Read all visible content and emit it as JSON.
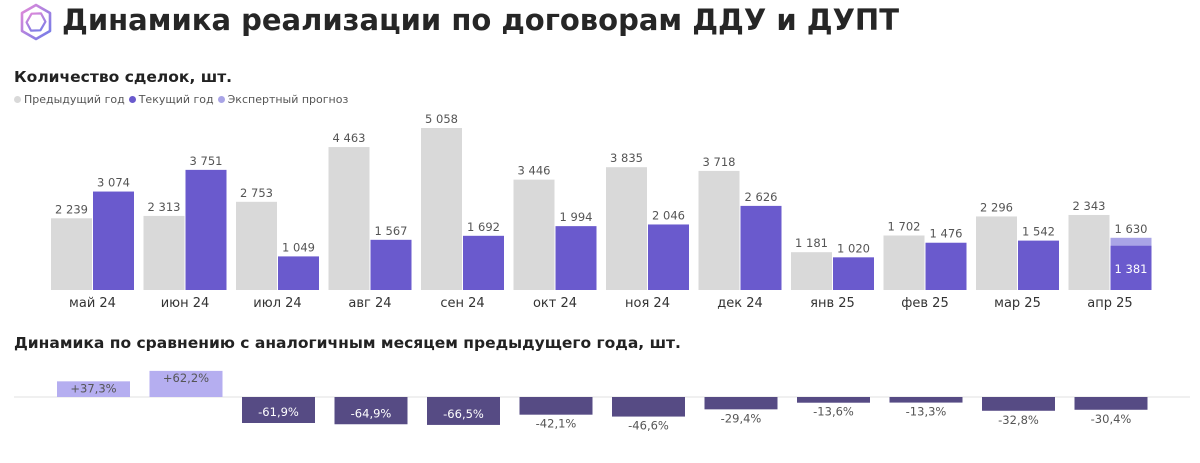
{
  "header": {
    "title": "Динамика реализации по договорам ДДУ и ДУПТ",
    "logo_icon": "hexagon-logo-icon"
  },
  "colors": {
    "previous": "#d9d9d9",
    "current": "#6a5acd",
    "forecast": "#a9a4e6",
    "positive": "#b5aef0",
    "negative": "#564b84"
  },
  "chart_data": [
    {
      "type": "bar",
      "title": "Количество сделок, шт.",
      "legend": {
        "placement": "top-left",
        "items": [
          "Предыдущий год",
          "Текущий год",
          "Экспертный прогноз"
        ]
      },
      "categories": [
        "май 24",
        "июн 24",
        "июл 24",
        "авг 24",
        "сен 24",
        "окт 24",
        "ноя 24",
        "дек 24",
        "янв 25",
        "фев 25",
        "мар 25",
        "апр 25"
      ],
      "series": [
        {
          "name": "Предыдущий год",
          "values": [
            2239,
            2313,
            2753,
            4463,
            5058,
            3446,
            3835,
            3718,
            1181,
            1702,
            2296,
            2343
          ],
          "labels": [
            "2 239",
            "2 313",
            "2 753",
            "4 463",
            "5 058",
            "3 446",
            "3 835",
            "3 718",
            "1 181",
            "1 702",
            "2 296",
            "2 343"
          ]
        },
        {
          "name": "Текущий год",
          "values": [
            3074,
            3751,
            1049,
            1567,
            1692,
            1994,
            2046,
            2626,
            1020,
            1476,
            1542,
            1381
          ],
          "labels": [
            "3 074",
            "3 751",
            "1 049",
            "1 567",
            "1 692",
            "1 994",
            "2 046",
            "2 626",
            "1 020",
            "1 476",
            "1 542",
            "1 381"
          ]
        },
        {
          "name": "Экспертный прогноз",
          "values": [
            null,
            null,
            null,
            null,
            null,
            null,
            null,
            null,
            null,
            null,
            null,
            1630
          ],
          "labels": [
            "",
            "",
            "",
            "",
            "",
            "",
            "",
            "",
            "",
            "",
            "",
            "1 630"
          ]
        }
      ],
      "grid": false,
      "ylim": [
        0,
        5400
      ]
    },
    {
      "type": "bar",
      "title": "Динамика по сравнению с аналогичным месяцем предыдущего года, шт.",
      "categories": [
        "май 24",
        "июн 24",
        "июл 24",
        "авг 24",
        "сен 24",
        "окт 24",
        "ноя 24",
        "дек 24",
        "янв 25",
        "фев 25",
        "мар 25",
        "апр 25"
      ],
      "values": [
        37.3,
        62.2,
        -61.9,
        -64.9,
        -66.5,
        -42.1,
        -46.6,
        -29.4,
        -13.6,
        -13.3,
        -32.8,
        -30.4
      ],
      "labels": [
        "+37,3%",
        "+62,2%",
        "-61,9%",
        "-64,9%",
        "-66,5%",
        "-42,1%",
        "-46,6%",
        "-29,4%",
        "-13,6%",
        "-13,3%",
        "-32,8%",
        "-30,4%"
      ],
      "grid": false
    }
  ]
}
